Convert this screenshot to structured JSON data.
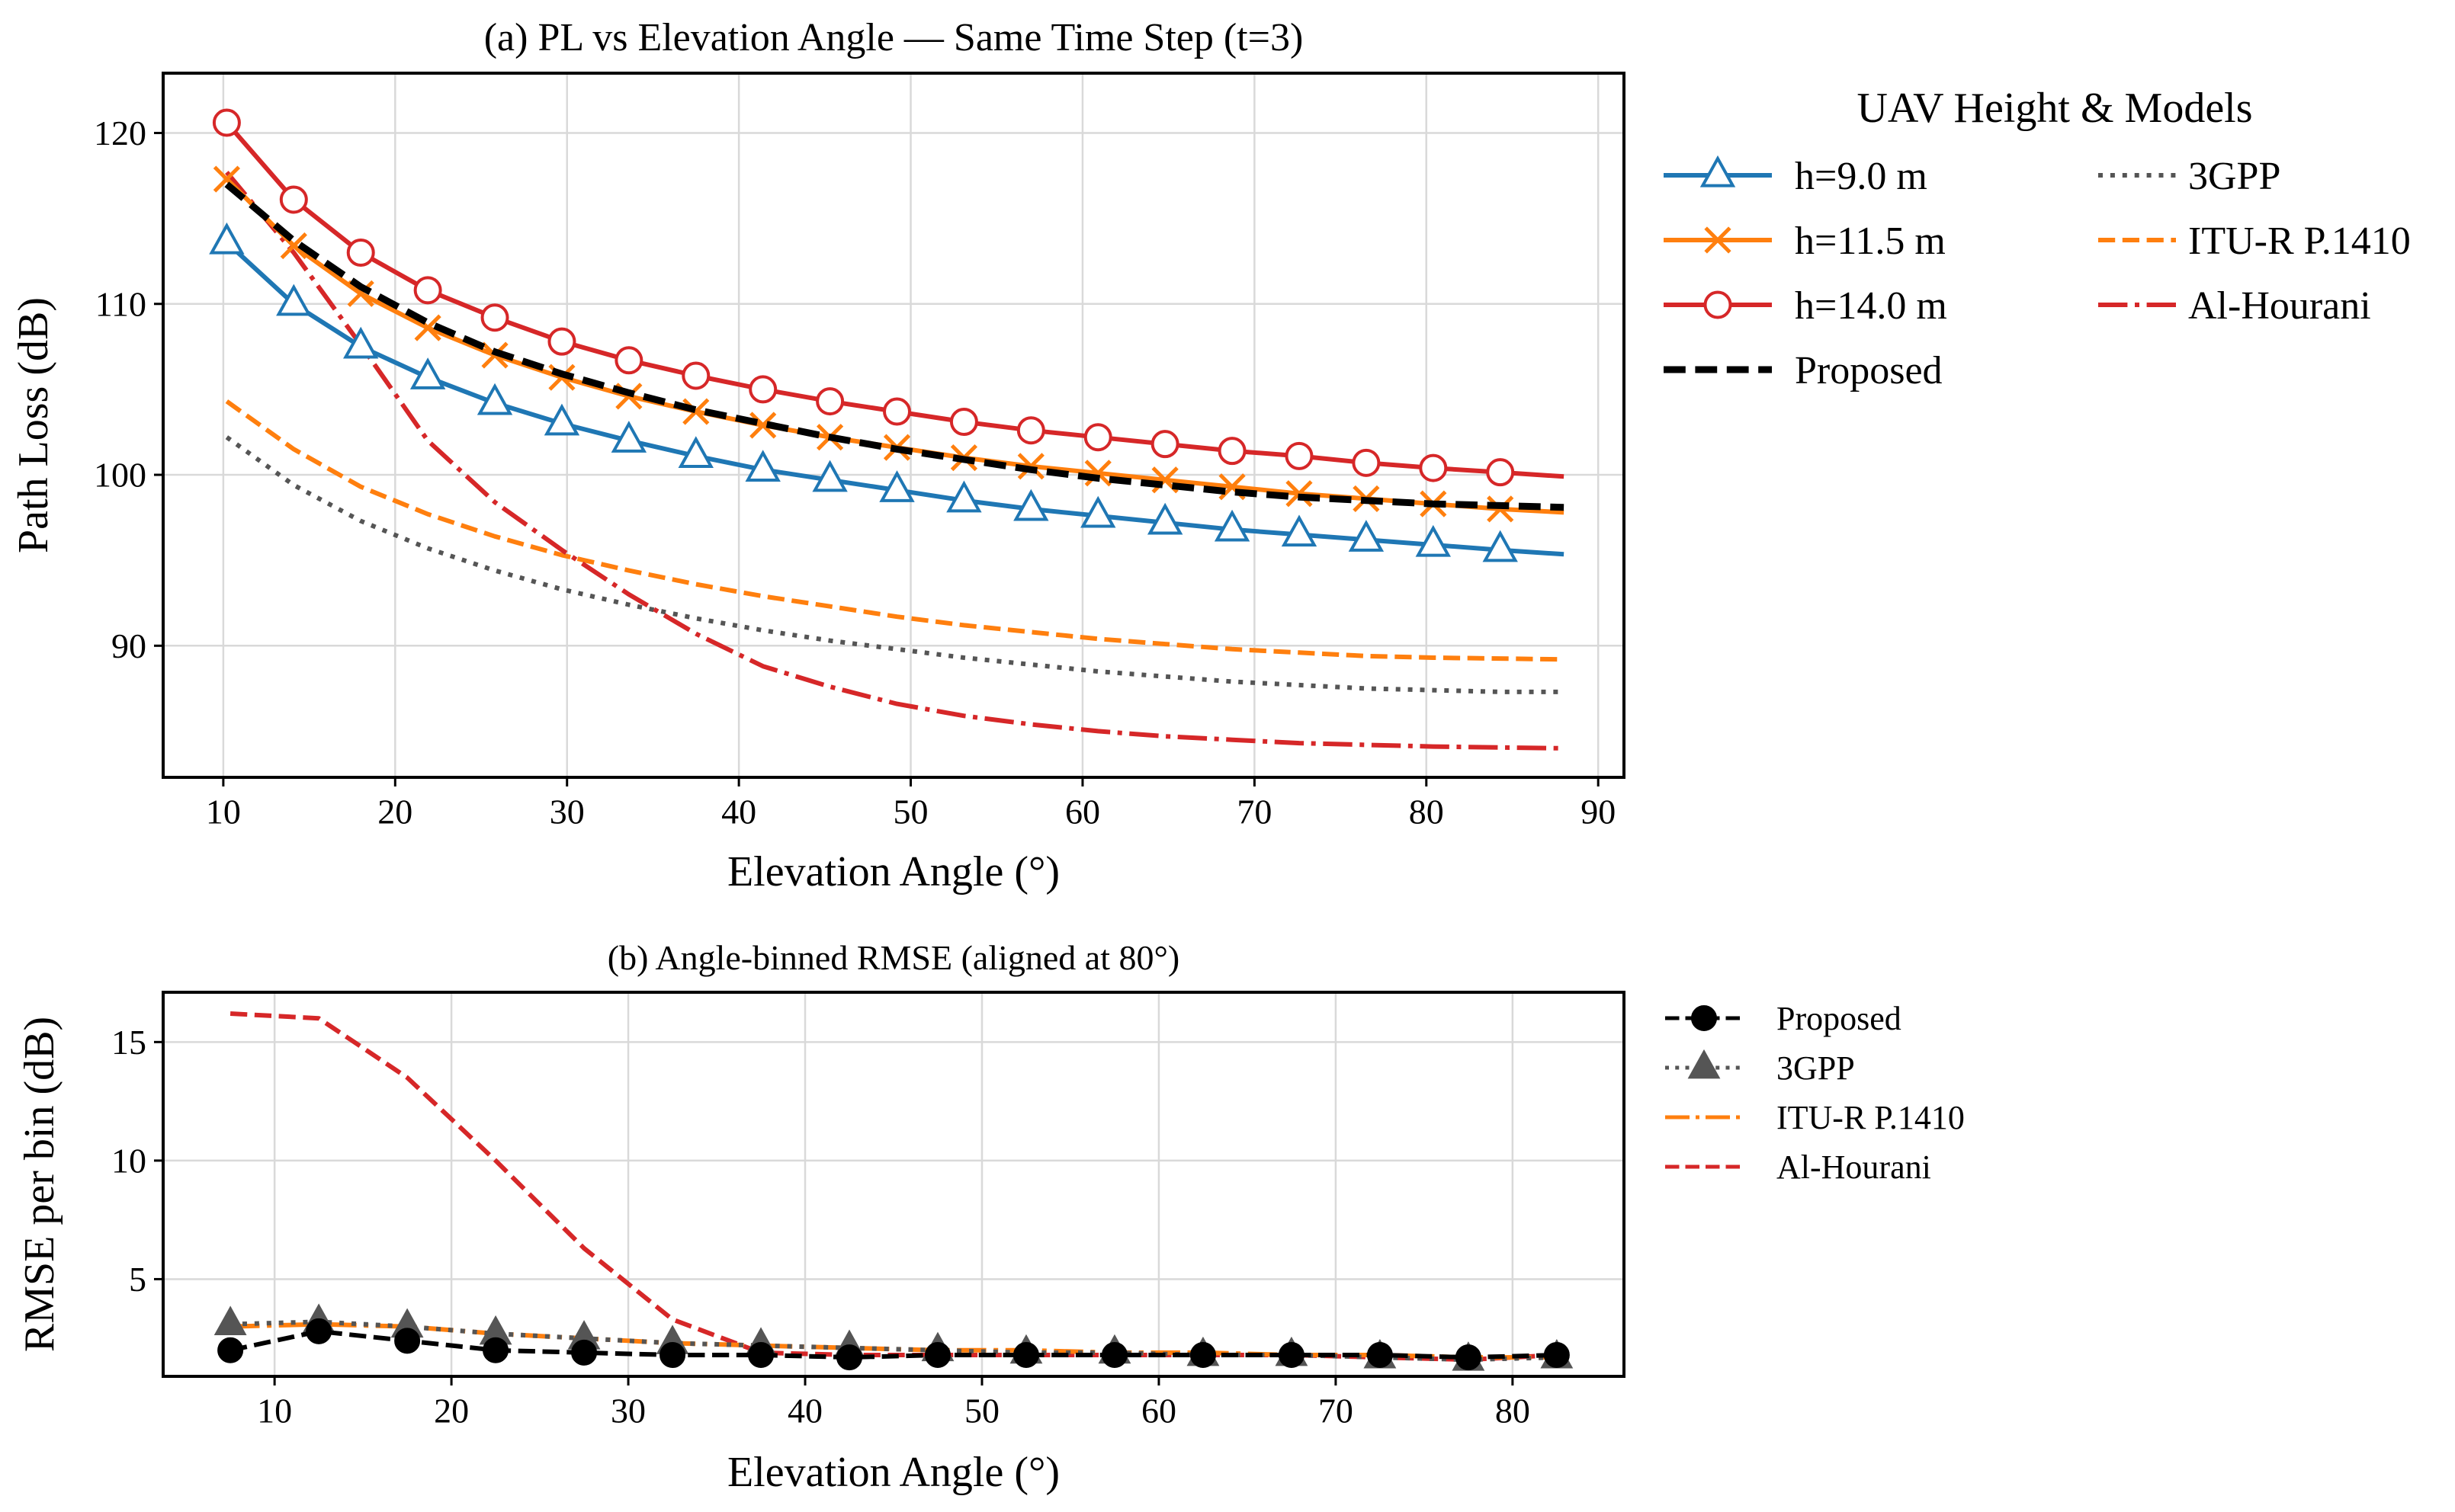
{
  "colors": {
    "h9": "#1f77b4",
    "h11": "#ff7f0e",
    "h14": "#d62728",
    "proposed": "#000000",
    "threegpp": "#555555",
    "itu": "#ff7f0e",
    "alhourani": "#d62728",
    "grid": "#d9d9d9"
  },
  "chart_data": [
    {
      "id": "a",
      "type": "line",
      "title": "(a) PL vs Elevation Angle — Same Time Step (t=3)",
      "xlabel": "Elevation Angle (°)",
      "ylabel": "Path Loss (dB)",
      "xlim": [
        6.5,
        91.5
      ],
      "ylim": [
        82.3,
        123.5
      ],
      "xticks": [
        10,
        20,
        30,
        40,
        50,
        60,
        70,
        80,
        90
      ],
      "yticks": [
        90,
        100,
        110,
        120
      ],
      "grid": true,
      "legend_title": "UAV Height & Models",
      "legend_position": "outside-right-top",
      "legend_columns": 2,
      "marker_x": [
        10.2,
        14.1,
        18.0,
        21.9,
        25.8,
        29.7,
        33.6,
        37.5,
        41.4,
        45.3,
        49.2,
        53.1,
        57.0,
        60.9,
        64.8,
        68.7,
        72.6,
        76.5,
        80.4,
        84.3
      ],
      "series": [
        {
          "name": "h=9.0 m",
          "color_key": "h9",
          "style": "solid",
          "marker": "triangle",
          "x": [
            10.2,
            14.1,
            18.0,
            21.9,
            25.8,
            29.7,
            33.6,
            37.5,
            41.4,
            45.3,
            49.2,
            53.1,
            57.0,
            60.9,
            64.8,
            68.7,
            72.6,
            76.5,
            80.4,
            84.3,
            88.0
          ],
          "y": [
            113.6,
            110.0,
            107.5,
            105.7,
            104.2,
            103.0,
            102.0,
            101.1,
            100.3,
            99.7,
            99.1,
            98.5,
            98.0,
            97.6,
            97.2,
            96.8,
            96.5,
            96.2,
            95.9,
            95.6,
            95.35
          ]
        },
        {
          "name": "h=11.5 m",
          "color_key": "h11",
          "style": "solid",
          "marker": "x",
          "x": [
            10.2,
            14.1,
            18.0,
            21.9,
            25.8,
            29.7,
            33.6,
            37.5,
            41.4,
            45.3,
            49.2,
            53.1,
            57.0,
            60.9,
            64.8,
            68.7,
            72.6,
            76.5,
            80.4,
            84.3,
            88.0
          ],
          "y": [
            117.3,
            113.4,
            110.6,
            108.6,
            107.0,
            105.7,
            104.6,
            103.7,
            102.9,
            102.2,
            101.6,
            101.0,
            100.5,
            100.1,
            99.7,
            99.3,
            98.9,
            98.6,
            98.3,
            98.0,
            97.8
          ]
        },
        {
          "name": "h=14.0 m",
          "color_key": "h14",
          "style": "solid",
          "marker": "circle",
          "x": [
            10.2,
            14.1,
            18.0,
            21.9,
            25.8,
            29.7,
            33.6,
            37.5,
            41.4,
            45.3,
            49.2,
            53.1,
            57.0,
            60.9,
            64.8,
            68.7,
            72.6,
            76.5,
            80.4,
            84.3,
            88.0
          ],
          "y": [
            120.6,
            116.1,
            113.0,
            110.8,
            109.2,
            107.8,
            106.7,
            105.8,
            105.0,
            104.3,
            103.7,
            103.1,
            102.6,
            102.2,
            101.8,
            101.4,
            101.1,
            100.7,
            100.4,
            100.15,
            99.9
          ]
        },
        {
          "name": "Proposed",
          "color_key": "proposed",
          "style": "dashed-bold",
          "marker": "none",
          "x": [
            10.2,
            14.1,
            18.0,
            21.9,
            25.8,
            29.7,
            33.6,
            37.5,
            41.4,
            45.3,
            49.2,
            53.1,
            57.0,
            60.9,
            64.8,
            68.7,
            72.6,
            76.5,
            80.4,
            84.3,
            88.0
          ],
          "y": [
            117.0,
            113.7,
            111.0,
            108.9,
            107.2,
            105.9,
            104.8,
            103.8,
            103.0,
            102.2,
            101.5,
            100.9,
            100.3,
            99.8,
            99.4,
            99.0,
            98.7,
            98.5,
            98.3,
            98.2,
            98.1
          ]
        },
        {
          "name": "3GPP",
          "color_key": "threegpp",
          "style": "dotted",
          "marker": "none",
          "x": [
            10.2,
            14.1,
            18.0,
            21.9,
            25.8,
            29.7,
            33.6,
            37.5,
            41.4,
            45.3,
            49.2,
            53.1,
            57.0,
            60.9,
            64.8,
            68.7,
            72.6,
            76.5,
            80.4,
            84.3,
            88.0
          ],
          "y": [
            102.2,
            99.4,
            97.3,
            95.7,
            94.4,
            93.3,
            92.4,
            91.6,
            90.9,
            90.3,
            89.8,
            89.3,
            88.9,
            88.5,
            88.2,
            87.9,
            87.7,
            87.5,
            87.4,
            87.3,
            87.3
          ]
        },
        {
          "name": "ITU-R P.1410",
          "color_key": "itu",
          "style": "dashed",
          "marker": "none",
          "x": [
            10.2,
            14.1,
            18.0,
            21.9,
            25.8,
            29.7,
            33.6,
            37.5,
            41.4,
            45.3,
            49.2,
            53.1,
            57.0,
            60.9,
            64.8,
            68.7,
            72.6,
            76.5,
            80.4,
            84.3,
            88.0
          ],
          "y": [
            104.3,
            101.5,
            99.3,
            97.7,
            96.4,
            95.3,
            94.4,
            93.6,
            92.9,
            92.3,
            91.7,
            91.2,
            90.8,
            90.4,
            90.1,
            89.8,
            89.6,
            89.4,
            89.3,
            89.25,
            89.2
          ]
        },
        {
          "name": "Al-Hourani",
          "color_key": "alhourani",
          "style": "dashdot",
          "marker": "none",
          "x": [
            10.2,
            14.1,
            18.0,
            21.9,
            25.8,
            29.7,
            33.6,
            37.5,
            41.4,
            45.3,
            49.2,
            53.1,
            57.0,
            60.9,
            64.8,
            68.7,
            72.6,
            76.5,
            80.4,
            84.3,
            88.0
          ],
          "y": [
            117.7,
            113.0,
            107.6,
            102.0,
            98.4,
            95.6,
            93.0,
            90.7,
            88.8,
            87.6,
            86.6,
            85.9,
            85.4,
            85.0,
            84.7,
            84.5,
            84.3,
            84.2,
            84.1,
            84.05,
            84.0
          ]
        }
      ]
    },
    {
      "id": "b",
      "type": "line",
      "title": "(b) Angle-binned RMSE (aligned at 80°)",
      "xlabel": "Elevation Angle (°)",
      "ylabel": "RMSE per bin (dB)",
      "xlim": [
        3.7,
        86.3
      ],
      "ylim": [
        0.9,
        17.1
      ],
      "xticks": [
        10,
        20,
        30,
        40,
        50,
        60,
        70,
        80
      ],
      "yticks": [
        5,
        10,
        15
      ],
      "grid": true,
      "legend_position": "outside-right-top",
      "x": [
        7.5,
        12.5,
        17.5,
        22.5,
        27.5,
        32.5,
        37.5,
        42.5,
        47.5,
        52.5,
        57.5,
        62.5,
        67.5,
        72.5,
        77.5,
        82.5
      ],
      "series": [
        {
          "name": "Proposed",
          "color_key": "proposed",
          "style": "dashed",
          "marker": "circle-filled",
          "values": [
            2.0,
            2.8,
            2.4,
            2.0,
            1.9,
            1.8,
            1.8,
            1.7,
            1.8,
            1.8,
            1.8,
            1.8,
            1.8,
            1.8,
            1.7,
            1.8
          ]
        },
        {
          "name": "3GPP",
          "color_key": "threegpp",
          "style": "dotted",
          "marker": "triangle-filled",
          "values": [
            3.1,
            3.2,
            3.0,
            2.7,
            2.5,
            2.3,
            2.2,
            2.1,
            2.0,
            1.9,
            1.9,
            1.8,
            1.8,
            1.7,
            1.6,
            1.7
          ]
        },
        {
          "name": "ITU-R P.1410",
          "color_key": "itu",
          "style": "dashdot",
          "marker": "none",
          "values": [
            3.0,
            3.1,
            3.0,
            2.7,
            2.5,
            2.3,
            2.2,
            2.1,
            2.0,
            2.0,
            1.9,
            1.9,
            1.8,
            1.8,
            1.7,
            1.7
          ]
        },
        {
          "name": "Al-Hourani",
          "color_key": "alhourani",
          "style": "dashed",
          "marker": "none",
          "values": [
            16.2,
            16.0,
            13.5,
            10.0,
            6.3,
            3.3,
            1.9,
            1.8,
            1.8,
            1.8,
            1.8,
            1.8,
            1.8,
            1.7,
            1.6,
            1.8
          ]
        }
      ]
    }
  ]
}
